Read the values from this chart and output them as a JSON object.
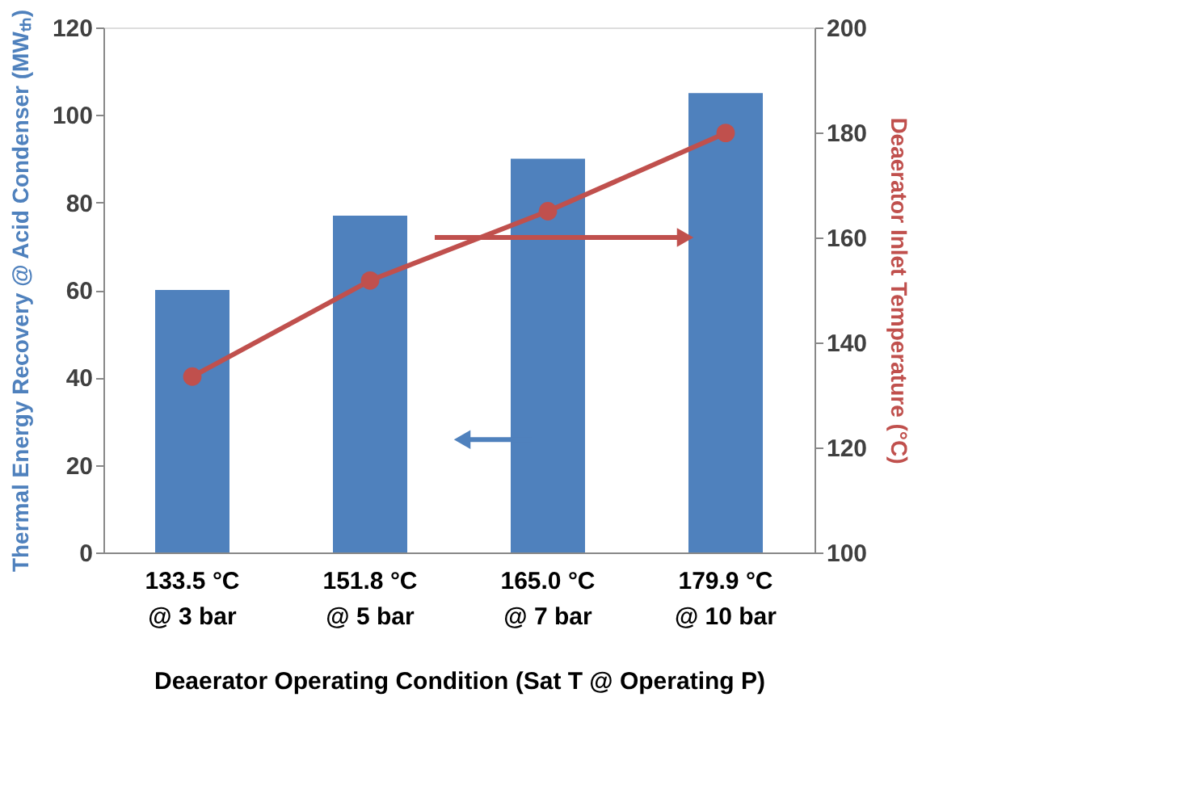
{
  "chart_data": {
    "type": "bar",
    "xlabel": "Deaerator Operating Condition (Sat T @ Operating P)",
    "ylabel": "Thermal Energy Recovery @ Acid Condenser (MWₜₕ)",
    "y2label": "Deaerator Inlet Temperature (°C)",
    "categories": [
      "133.5 °C\n@ 3 bar",
      "151.8 °C\n@ 5 bar",
      "165.0 °C\n@ 7 bar",
      "179.9 °C\n@ 10 bar"
    ],
    "series": [
      {
        "color": "#4f81bd",
        "values": [
          60,
          77,
          90,
          105
        ]
      },
      {
        "type": "line",
        "axis": "y2",
        "color": "#c0504d",
        "marker": "circle",
        "values": [
          133.5,
          151.8,
          165.0,
          179.9
        ]
      }
    ],
    "ylim": [
      0,
      120
    ],
    "yticks": [
      0,
      20,
      40,
      60,
      80,
      100,
      120
    ],
    "y2lim": [
      100,
      200
    ],
    "y2ticks": [
      100,
      120,
      140,
      160,
      180,
      200
    ],
    "grid": false
  }
}
